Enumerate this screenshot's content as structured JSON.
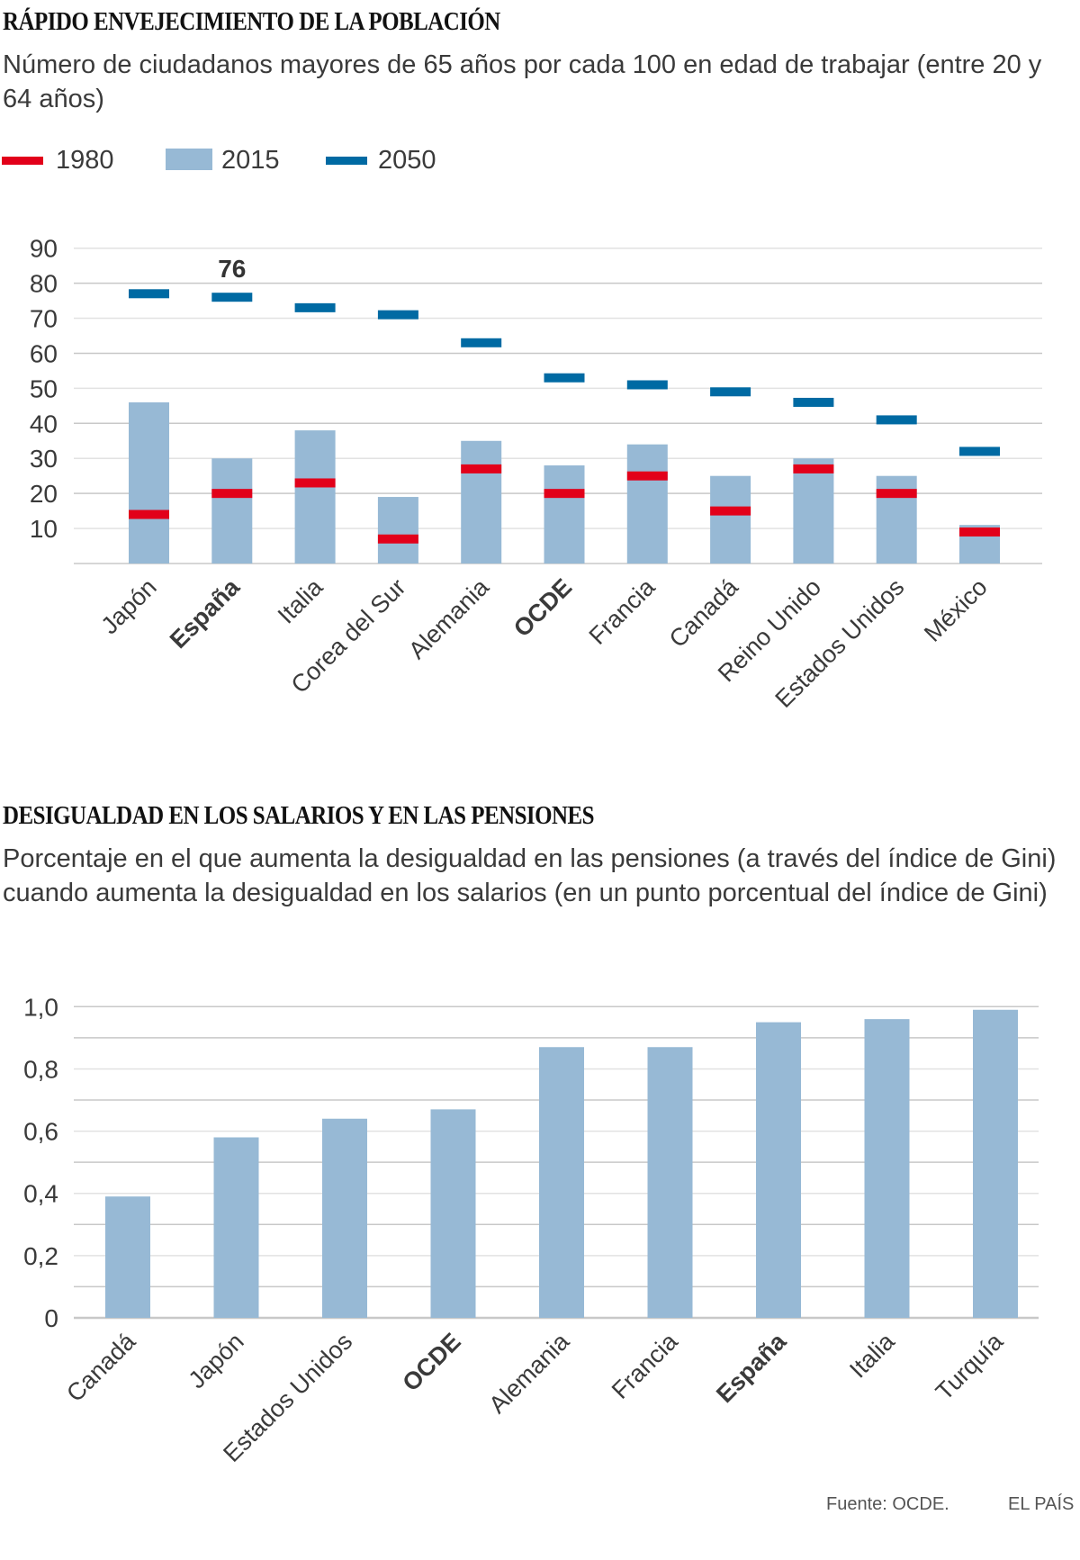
{
  "colors": {
    "red_1980": "#e2001a",
    "bar_2015": "#97b9d5",
    "blue_2050": "#006aa3",
    "grid": "#c8c8c8",
    "grid_light": "#e2e2e2",
    "text": "#3a3a3a",
    "highlight_label": "#333333"
  },
  "section1": {
    "title": "RÁPIDO ENVEJECIMIENTO DE LA POBLACIÓN",
    "subtitle": "Número de ciudadanos mayores de 65 años por cada 100 en edad de trabajar (entre 20 y 64 años)",
    "legend": [
      {
        "label": "1980",
        "style": "line",
        "color": "#e2001a"
      },
      {
        "label": "2015",
        "style": "box",
        "color": "#97b9d5"
      },
      {
        "label": "2050",
        "style": "line",
        "color": "#006aa3"
      }
    ]
  },
  "section2": {
    "title": "DESIGUALDAD EN LOS SALARIOS Y EN LAS PENSIONES",
    "subtitle": "Porcentaje en el que aumenta la desigualdad en las pensiones (a través del índice de Gini) cuando aumenta la desigualdad en los salarios (en un punto porcentual del índice de Gini)"
  },
  "footer": {
    "source": "Fuente: OCDE.",
    "brand": "EL PAÍS"
  },
  "chart_data": [
    {
      "type": "bar",
      "title": "RÁPIDO ENVEJECIMIENTO DE LA POBLACIÓN",
      "subtitle": "Número de ciudadanos mayores de 65 años por cada 100 en edad de trabajar (entre 20 y 64 años)",
      "xlabel": "",
      "ylabel": "",
      "ylim": [
        0,
        90
      ],
      "yticks": [
        10,
        20,
        30,
        40,
        50,
        60,
        70,
        80,
        90
      ],
      "ytick_labels": [
        "10",
        "20",
        "30",
        "40",
        "50",
        "60",
        "70",
        "80",
        "90"
      ],
      "grid": true,
      "legend_position": "top-left",
      "categories": [
        "Japón",
        "España",
        "Italia",
        "Corea del Sur",
        "Alemania",
        "OCDE",
        "Francia",
        "Canadá",
        "Reino Unido",
        "Estados Unidos",
        "México"
      ],
      "bold_categories": [
        "España",
        "OCDE"
      ],
      "series": [
        {
          "name": "1980",
          "mark": "tick",
          "values": [
            14,
            20,
            23,
            7,
            27,
            20,
            25,
            15,
            27,
            20,
            9
          ]
        },
        {
          "name": "2015",
          "mark": "bar",
          "values": [
            46,
            30,
            38,
            19,
            35,
            28,
            34,
            25,
            30,
            25,
            11
          ]
        },
        {
          "name": "2050",
          "mark": "tick",
          "values": [
            77,
            76,
            73,
            71,
            63,
            53,
            51,
            49,
            46,
            41,
            32
          ]
        }
      ],
      "annotations": [
        {
          "category": "España",
          "series": "2050",
          "text": "76"
        }
      ]
    },
    {
      "type": "bar",
      "title": "DESIGUALDAD EN LOS SALARIOS Y EN LAS PENSIONES",
      "subtitle": "Porcentaje en el que aumenta la desigualdad en las pensiones (a través del índice de Gini) cuando aumenta la desigualdad en los salarios (en un punto porcentual del índice de Gini)",
      "xlabel": "",
      "ylabel": "",
      "ylim": [
        0,
        1.0
      ],
      "yticks": [
        0,
        0.2,
        0.4,
        0.6,
        0.8,
        1.0
      ],
      "ytick_labels": [
        "0",
        "0,2",
        "0,4",
        "0,6",
        "0,8",
        "1,0"
      ],
      "minor_grid_step": 0.1,
      "grid": true,
      "categories": [
        "Canadá",
        "Japón",
        "Estados Unidos",
        "OCDE",
        "Alemania",
        "Francia",
        "España",
        "Italia",
        "Turquía"
      ],
      "bold_categories": [
        "OCDE",
        "España"
      ],
      "values": [
        0.39,
        0.58,
        0.64,
        0.67,
        0.87,
        0.87,
        0.95,
        0.96,
        0.99
      ]
    }
  ]
}
